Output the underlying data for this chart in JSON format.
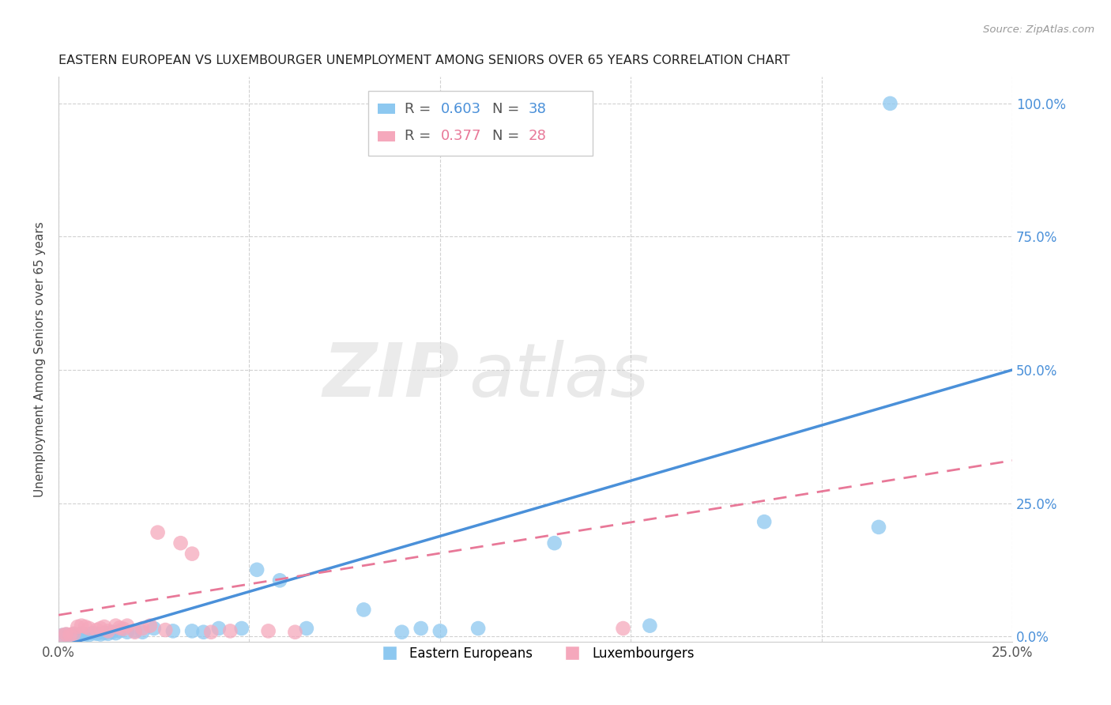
{
  "title": "EASTERN EUROPEAN VS LUXEMBOURGER UNEMPLOYMENT AMONG SENIORS OVER 65 YEARS CORRELATION CHART",
  "source": "Source: ZipAtlas.com",
  "ylabel": "Unemployment Among Seniors over 65 years",
  "xlim": [
    0.0,
    0.25
  ],
  "ylim": [
    -0.01,
    1.05
  ],
  "xticks": [
    0.0,
    0.05,
    0.1,
    0.15,
    0.2,
    0.25
  ],
  "yticks": [
    0.0,
    0.25,
    0.5,
    0.75,
    1.0
  ],
  "xticklabels": [
    "0.0%",
    "",
    "",
    "",
    "",
    "25.0%"
  ],
  "yticklabels": [
    "",
    "",
    "",
    "",
    ""
  ],
  "right_yticklabels": [
    "0.0%",
    "25.0%",
    "50.0%",
    "75.0%",
    "100.0%"
  ],
  "blue_color": "#8DC8F0",
  "pink_color": "#F5A8BC",
  "blue_line_color": "#4A90D9",
  "pink_line_color": "#E87898",
  "legend_blue_label": "Eastern Europeans",
  "legend_pink_label": "Luxembourgers",
  "watermark_zip": "ZIP",
  "watermark_atlas": "atlas",
  "blue_x": [
    0.001,
    0.002,
    0.003,
    0.004,
    0.005,
    0.006,
    0.007,
    0.008,
    0.009,
    0.01,
    0.011,
    0.012,
    0.013,
    0.014,
    0.015,
    0.016,
    0.018,
    0.02,
    0.022,
    0.025,
    0.03,
    0.035,
    0.038,
    0.042,
    0.048,
    0.052,
    0.058,
    0.065,
    0.08,
    0.09,
    0.095,
    0.1,
    0.11,
    0.13,
    0.155,
    0.185,
    0.215,
    0.218
  ],
  "blue_y": [
    0.002,
    0.003,
    0.002,
    0.004,
    0.003,
    0.005,
    0.004,
    0.003,
    0.006,
    0.005,
    0.004,
    0.006,
    0.005,
    0.008,
    0.006,
    0.01,
    0.008,
    0.01,
    0.008,
    0.015,
    0.01,
    0.01,
    0.008,
    0.015,
    0.015,
    0.125,
    0.105,
    0.015,
    0.05,
    0.008,
    0.015,
    0.01,
    0.015,
    0.175,
    0.02,
    0.215,
    0.205,
    1.0
  ],
  "pink_x": [
    0.001,
    0.002,
    0.003,
    0.004,
    0.005,
    0.006,
    0.007,
    0.008,
    0.01,
    0.011,
    0.012,
    0.013,
    0.015,
    0.016,
    0.017,
    0.018,
    0.02,
    0.022,
    0.024,
    0.026,
    0.028,
    0.032,
    0.035,
    0.04,
    0.045,
    0.055,
    0.062,
    0.148
  ],
  "pink_y": [
    0.002,
    0.004,
    0.003,
    0.005,
    0.018,
    0.02,
    0.018,
    0.015,
    0.012,
    0.015,
    0.018,
    0.01,
    0.02,
    0.016,
    0.014,
    0.02,
    0.008,
    0.015,
    0.02,
    0.195,
    0.012,
    0.175,
    0.155,
    0.008,
    0.01,
    0.01,
    0.008,
    0.015
  ],
  "blue_trend_x0": 0.0,
  "blue_trend_y0": -0.02,
  "blue_trend_x1": 0.25,
  "blue_trend_y1": 0.5,
  "pink_trend_x0": 0.0,
  "pink_trend_y0": 0.04,
  "pink_trend_x1": 0.25,
  "pink_trend_y1": 0.33
}
